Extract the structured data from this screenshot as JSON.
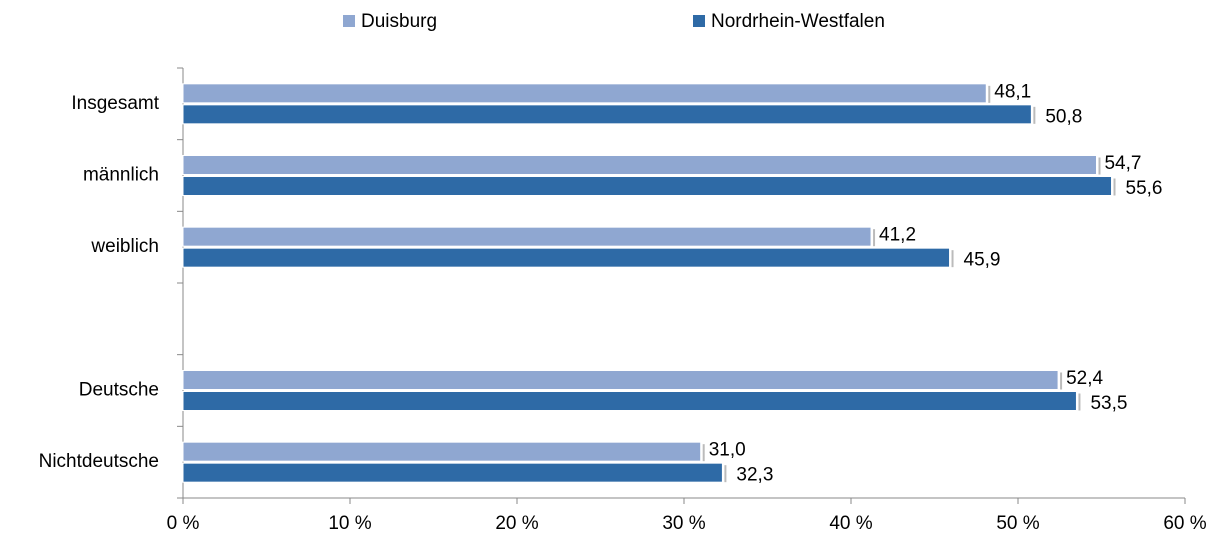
{
  "chart_data": {
    "type": "barh",
    "categories": [
      "Insgesamt",
      "männlich",
      "weiblich",
      null,
      "Deutsche",
      "Nichtdeutsche"
    ],
    "series": [
      {
        "name": "Duisburg",
        "color": "#8fa7d1",
        "values": [
          48.1,
          54.7,
          41.2,
          null,
          52.4,
          31.0
        ],
        "value_labels": [
          "48,1",
          "54,7",
          "41,2",
          null,
          "52,4",
          "31,0"
        ]
      },
      {
        "name": "Nordrhein-Westfalen",
        "color": "#2e6aa6",
        "values": [
          50.8,
          55.6,
          45.9,
          null,
          53.5,
          32.3
        ],
        "value_labels": [
          "50,8",
          "55,6",
          "45,9",
          null,
          "53,5",
          "32,3"
        ]
      }
    ],
    "xlim": [
      0,
      60
    ],
    "xticks": [
      {
        "value": 0,
        "label": "0 %"
      },
      {
        "value": 10,
        "label": "10 %"
      },
      {
        "value": 20,
        "label": "20 %"
      },
      {
        "value": 30,
        "label": "30 %"
      },
      {
        "value": 40,
        "label": "40 %"
      },
      {
        "value": 50,
        "label": "50 %"
      },
      {
        "value": 60,
        "label": "60 %"
      }
    ],
    "legend": "top"
  }
}
